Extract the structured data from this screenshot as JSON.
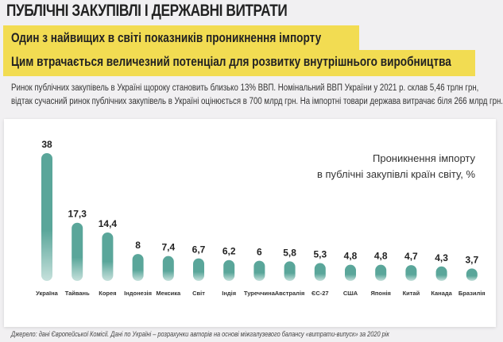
{
  "header": {
    "title": "ПУБЛІЧНІ ЗАКУПІВЛІ І ДЕРЖАВНІ ВИТРАТИ",
    "subtitle_line1": "Один з найвищих в світі показників проникнення імпорту",
    "subtitle_line2": "Цим втрачається величезний потенціал для розвитку внутрішнього виробництва",
    "intro_line1": "Ринок публічних закупівель в Україні щороку становить близько 13% ВВП. Номінальний ВВП України у 2021 р. склав 5,46 трлн грн,",
    "intro_line2": "відтак сучасний ринок публічних закупівель в Україні оцінюється в 700 млрд грн. На імпортні товари держава витрачає біля 266 млрд грн."
  },
  "chart_data": {
    "type": "bar",
    "title_line1": "Проникнення імпорту",
    "title_line2": "в публічні закупівлі країн світу, %",
    "categories": [
      "Україна",
      "Тайвань",
      "Корея",
      "Індонезія",
      "Мексика",
      "Світ",
      "Індія",
      "Туреччина",
      "Австралія",
      "ЄС-27",
      "США",
      "Японія",
      "Китай",
      "Канада",
      "Бразилія"
    ],
    "values": [
      38,
      17.3,
      14.4,
      8,
      7.4,
      6.7,
      6.2,
      6,
      5.8,
      5.3,
      4.8,
      4.8,
      4.7,
      4.3,
      3.7
    ],
    "labels": [
      "38",
      "17,3",
      "14,4",
      "8",
      "7,4",
      "6,7",
      "6,2",
      "6",
      "5,8",
      "5,3",
      "4,8",
      "4,8",
      "4,7",
      "4,3",
      "3,7"
    ],
    "ylim": [
      0,
      38
    ],
    "grid": false,
    "bar_color": "#5aa69a",
    "bar_color_light": "#c6e1dc"
  },
  "footer": {
    "source": "Джерело:  дані Європейської Комісії. Дані по Україні – розрахунки авторів на основі міжгалузевого балансу «витрати-випуск» за 2020 рік"
  }
}
